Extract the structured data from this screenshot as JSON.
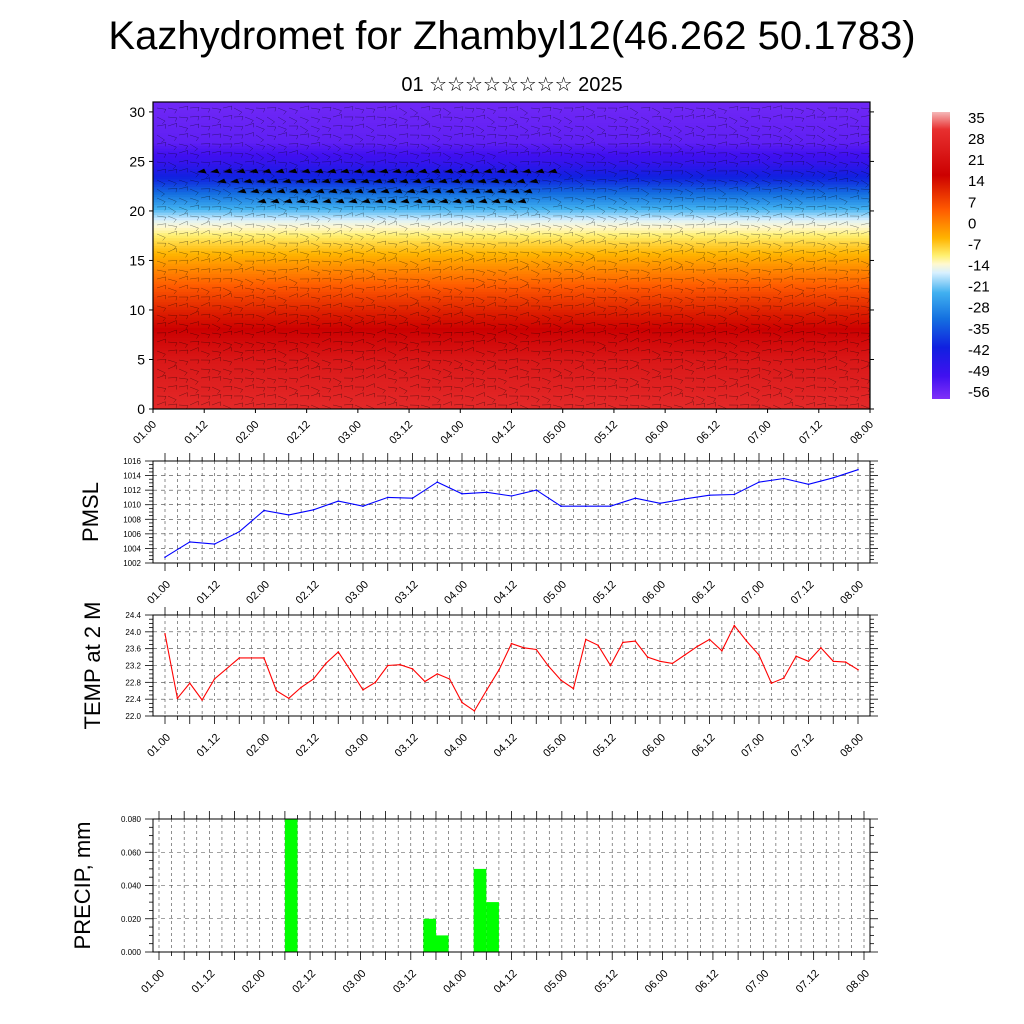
{
  "header": {
    "title": "Kazhydromet for Zhambyl12(46.262 50.1783)",
    "subtitle": "01 ☆☆☆☆☆☆☆☆ 2025"
  },
  "colors": {
    "pmsl_line": "#0000ff",
    "temp_line": "#ff0000",
    "precip_bar": "#00ff00",
    "frame": "#000000",
    "grid": "#555555"
  },
  "chart_data": [
    {
      "type": "heatmap",
      "title": "",
      "xlabel": "",
      "ylabel": "",
      "ylim": [
        0,
        31
      ],
      "y_ticks": [
        "0",
        "5",
        "10",
        "15",
        "20",
        "25",
        "30"
      ],
      "x_ticks": [
        "01.00",
        "01.12",
        "02.00",
        "02.12",
        "03.00",
        "03.12",
        "04.00",
        "04.12",
        "05.00",
        "05.12",
        "06.00",
        "06.12",
        "07.00",
        "07.12",
        "08.00"
      ],
      "colorbar_labels": [
        "35",
        "28",
        "21",
        "14",
        "7",
        "0",
        "-7",
        "-14",
        "-21",
        "-28",
        "-35",
        "-42",
        "-49",
        "-56"
      ],
      "colorbar_range": [
        -60,
        38
      ],
      "overlay": "wind barbs",
      "value_profile": [
        {
          "y": 0,
          "value": 30
        },
        {
          "y": 5,
          "value": 24
        },
        {
          "y": 10,
          "value": 12
        },
        {
          "y": 13,
          "value": 3
        },
        {
          "y": 15,
          "value": -3
        },
        {
          "y": 17,
          "value": -9
        },
        {
          "y": 19,
          "value": -16
        },
        {
          "y": 21,
          "value": -28
        },
        {
          "y": 23,
          "value": -40
        },
        {
          "y": 25,
          "value": -50
        },
        {
          "y": 27,
          "value": -56
        },
        {
          "y": 31,
          "value": -58
        }
      ]
    },
    {
      "type": "line",
      "ylabel": "PMSL",
      "ylim": [
        1002,
        1016
      ],
      "y_ticks": [
        "1002",
        "1004",
        "1006",
        "1008",
        "1010",
        "1012",
        "1014",
        "1016"
      ],
      "x_ticks": [
        "01.00",
        "01.12",
        "02.00",
        "02.12",
        "03.00",
        "03.12",
        "04.00",
        "04.12",
        "05.00",
        "05.12",
        "06.00",
        "06.12",
        "07.00",
        "07.12",
        "08.00"
      ],
      "x_range": [
        0,
        14
      ],
      "series": [
        {
          "x": [
            0,
            0.5,
            1,
            1.5,
            2,
            2.5,
            3,
            3.5,
            4,
            4.5,
            5,
            5.5,
            6,
            6.5,
            7,
            7.5,
            8,
            8.5,
            9,
            9.5,
            10,
            10.5,
            11,
            11.5,
            12,
            12.5,
            13,
            13.5,
            14
          ],
          "values": [
            1002.8,
            1004.9,
            1004.6,
            1006.3,
            1009.2,
            1008.6,
            1009.3,
            1010.5,
            1009.8,
            1011.0,
            1010.9,
            1013.1,
            1011.5,
            1011.7,
            1011.2,
            1012.0,
            1009.8,
            1009.8,
            1009.8,
            1010.9,
            1010.2,
            1010.8,
            1011.3,
            1011.4,
            1013.1,
            1013.6,
            1012.8,
            1013.7,
            1014.8
          ]
        }
      ]
    },
    {
      "type": "line",
      "ylabel": "TEMP at 2 M",
      "ylim": [
        22.0,
        24.4
      ],
      "y_ticks": [
        "22.0",
        "22.4",
        "22.8",
        "23.2",
        "23.6",
        "24.0",
        "24.4"
      ],
      "x_ticks": [
        "01.00",
        "01.12",
        "02.00",
        "02.12",
        "03.00",
        "03.12",
        "04.00",
        "04.12",
        "05.00",
        "05.12",
        "06.00",
        "06.12",
        "07.00",
        "07.12",
        "08.00"
      ],
      "x_range": [
        0,
        14
      ],
      "series": [
        {
          "x": [
            0,
            0.25,
            0.5,
            0.75,
            1,
            1.5,
            2,
            2.25,
            2.5,
            2.75,
            3,
            3.25,
            3.5,
            3.75,
            4,
            4.25,
            4.5,
            4.75,
            5,
            5.25,
            5.5,
            5.75,
            6,
            6.25,
            6.5,
            6.75,
            7,
            7.25,
            7.5,
            7.75,
            8,
            8.25,
            8.5,
            8.75,
            9,
            9.25,
            9.5,
            9.75,
            10,
            10.25,
            10.5,
            10.75,
            11,
            11.25,
            11.5,
            11.75,
            12,
            12.25,
            12.5,
            12.75,
            13,
            13.25,
            13.5,
            13.75,
            14
          ],
          "values": [
            23.95,
            22.42,
            22.78,
            22.38,
            22.88,
            23.38,
            23.38,
            22.6,
            22.42,
            22.68,
            22.88,
            23.25,
            23.52,
            23.08,
            22.62,
            22.8,
            23.2,
            23.22,
            23.12,
            22.82,
            23.0,
            22.88,
            22.32,
            22.12,
            22.62,
            23.1,
            23.72,
            23.62,
            23.58,
            23.18,
            22.85,
            22.65,
            23.82,
            23.68,
            23.2,
            23.75,
            23.78,
            23.4,
            23.3,
            23.25,
            23.45,
            23.65,
            23.82,
            23.55,
            24.15,
            23.78,
            23.45,
            22.78,
            22.9,
            23.42,
            23.3,
            23.62,
            23.3,
            23.28,
            23.1
          ]
        }
      ]
    },
    {
      "type": "bar",
      "ylabel": "PRECIP, mm",
      "ylim": [
        0,
        0.08
      ],
      "y_ticks": [
        "0.000",
        "0.020",
        "0.040",
        "0.060",
        "0.080"
      ],
      "x_ticks": [
        "01.00",
        "01.12",
        "02.00",
        "02.12",
        "03.00",
        "03.12",
        "04.00",
        "04.12",
        "05.00",
        "05.12",
        "06.00",
        "06.12",
        "07.00",
        "07.12",
        "08.00"
      ],
      "x_range": [
        0,
        14
      ],
      "bar_width": 0.25,
      "series": [
        {
          "x": [
            2.5,
            5.25,
            5.5,
            6.25,
            6.5
          ],
          "values": [
            0.08,
            0.02,
            0.01,
            0.05,
            0.03
          ]
        }
      ]
    }
  ]
}
